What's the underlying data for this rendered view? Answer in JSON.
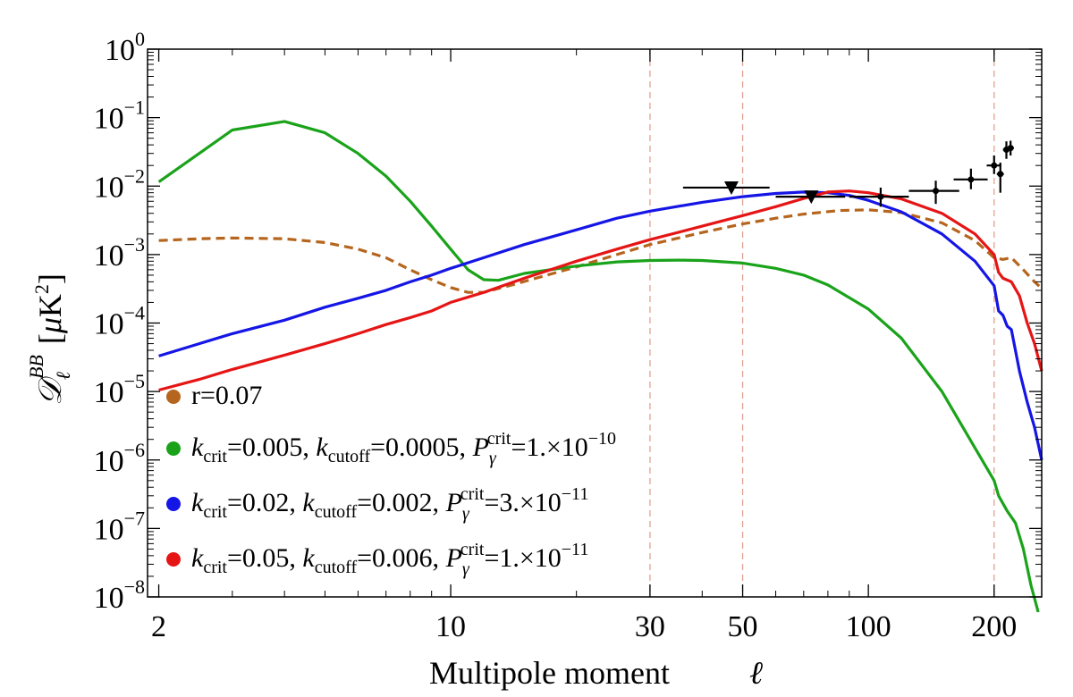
{
  "chart_data": {
    "type": "line",
    "title": "",
    "xlabel": "Multipole moment",
    "xlabel_symbol": "ℓ",
    "ylabel": "D_ℓ^BB [μK²]",
    "xscale": "log",
    "yscale": "log",
    "xlim": [
      1.88,
      260
    ],
    "ylim": [
      1e-08,
      1
    ],
    "x_ticks": [
      {
        "value": 2,
        "label": "2"
      },
      {
        "value": 10,
        "label": "10"
      },
      {
        "value": 30,
        "label": "30"
      },
      {
        "value": 50,
        "label": "50"
      },
      {
        "value": 100,
        "label": "100"
      },
      {
        "value": 200,
        "label": "200"
      }
    ],
    "y_ticks": [
      {
        "exp": 0,
        "base": "10",
        "sup": "0"
      },
      {
        "exp": -1,
        "base": "10",
        "sup": "−1"
      },
      {
        "exp": -2,
        "base": "10",
        "sup": "−2"
      },
      {
        "exp": -3,
        "base": "10",
        "sup": "−3"
      },
      {
        "exp": -4,
        "base": "10",
        "sup": "−4"
      },
      {
        "exp": -5,
        "base": "10",
        "sup": "−5"
      },
      {
        "exp": -6,
        "base": "10",
        "sup": "−6"
      },
      {
        "exp": -7,
        "base": "10",
        "sup": "−7"
      },
      {
        "exp": -8,
        "base": "10",
        "sup": "−8"
      }
    ],
    "vertical_guides": [
      30,
      50,
      200
    ],
    "legend_position": "lower-left",
    "series": [
      {
        "name": "r=0.07",
        "color": "#b5651d",
        "dash": "dashed",
        "points": [
          [
            2,
            0.0016
          ],
          [
            2.5,
            0.0017
          ],
          [
            3,
            0.00175
          ],
          [
            4,
            0.0017
          ],
          [
            5,
            0.0015
          ],
          [
            6,
            0.0012
          ],
          [
            7,
            0.0009
          ],
          [
            8,
            0.0006
          ],
          [
            9,
            0.00043
          ],
          [
            10,
            0.00033
          ],
          [
            11,
            0.00028
          ],
          [
            12,
            0.00028
          ],
          [
            14,
            0.00036
          ],
          [
            17,
            0.0005
          ],
          [
            20,
            0.00066
          ],
          [
            25,
            0.001
          ],
          [
            30,
            0.0014
          ],
          [
            40,
            0.0021
          ],
          [
            50,
            0.0028
          ],
          [
            60,
            0.0034
          ],
          [
            70,
            0.0039
          ],
          [
            85,
            0.0044
          ],
          [
            100,
            0.0045
          ],
          [
            120,
            0.0041
          ],
          [
            150,
            0.0029
          ],
          [
            180,
            0.0016
          ],
          [
            200,
            0.0009
          ],
          [
            210,
            0.00085
          ],
          [
            220,
            0.0009
          ],
          [
            235,
            0.0006
          ],
          [
            250,
            0.0004
          ],
          [
            260,
            0.00032
          ]
        ]
      },
      {
        "name": "k_crit=0.005, k_cutoff=0.0005, P_γ^crit=1.×10^−10",
        "color": "#1aa31a",
        "dash": "solid",
        "points": [
          [
            2,
            0.0115
          ],
          [
            2.5,
            0.03
          ],
          [
            3,
            0.066
          ],
          [
            4,
            0.088
          ],
          [
            5,
            0.06
          ],
          [
            6,
            0.03
          ],
          [
            7,
            0.014
          ],
          [
            8,
            0.006
          ],
          [
            9,
            0.0026
          ],
          [
            10,
            0.0012
          ],
          [
            11,
            0.0006
          ],
          [
            12,
            0.00043
          ],
          [
            13,
            0.00042
          ],
          [
            15,
            0.00053
          ],
          [
            20,
            0.00068
          ],
          [
            25,
            0.00078
          ],
          [
            30,
            0.00082
          ],
          [
            35,
            0.00083
          ],
          [
            40,
            0.00082
          ],
          [
            50,
            0.00075
          ],
          [
            60,
            0.00063
          ],
          [
            70,
            0.0005
          ],
          [
            80,
            0.00036
          ],
          [
            100,
            0.00016
          ],
          [
            120,
            6e-05
          ],
          [
            150,
            1e-05
          ],
          [
            180,
            1.5e-06
          ],
          [
            200,
            5e-07
          ],
          [
            205,
            3e-07
          ],
          [
            215,
            1.8e-07
          ],
          [
            225,
            1.2e-07
          ],
          [
            235,
            5e-08
          ],
          [
            245,
            1.5e-08
          ],
          [
            255,
            6e-09
          ]
        ]
      },
      {
        "name": "k_crit=0.02, k_cutoff=0.002, P_γ^crit=3.×10^−11",
        "color": "#1515e6",
        "dash": "solid",
        "points": [
          [
            2,
            3.3e-05
          ],
          [
            2.5,
            5e-05
          ],
          [
            3,
            7e-05
          ],
          [
            4,
            0.00011
          ],
          [
            5,
            0.00017
          ],
          [
            6,
            0.00023
          ],
          [
            7,
            0.0003
          ],
          [
            8,
            0.0004
          ],
          [
            9,
            0.0005
          ],
          [
            10,
            0.00063
          ],
          [
            12,
            0.0009
          ],
          [
            15,
            0.0014
          ],
          [
            20,
            0.0023
          ],
          [
            25,
            0.0034
          ],
          [
            30,
            0.0043
          ],
          [
            40,
            0.0058
          ],
          [
            50,
            0.007
          ],
          [
            60,
            0.0078
          ],
          [
            70,
            0.0082
          ],
          [
            80,
            0.008
          ],
          [
            90,
            0.0073
          ],
          [
            100,
            0.0062
          ],
          [
            120,
            0.0042
          ],
          [
            150,
            0.002
          ],
          [
            180,
            0.0008
          ],
          [
            200,
            0.00035
          ],
          [
            205,
            0.00015
          ],
          [
            210,
            0.00013
          ],
          [
            215,
            9e-05
          ],
          [
            220,
            8e-05
          ],
          [
            230,
            2e-05
          ],
          [
            240,
            7e-06
          ],
          [
            250,
            3e-06
          ],
          [
            260,
            1e-06
          ]
        ]
      },
      {
        "name": "k_crit=0.05, k_cutoff=0.006, P_γ^crit=1.×10^−11",
        "color": "#e61515",
        "dash": "solid",
        "points": [
          [
            2,
            1.05e-05
          ],
          [
            2.5,
            1.5e-05
          ],
          [
            3,
            2.1e-05
          ],
          [
            4,
            3.4e-05
          ],
          [
            5,
            5e-05
          ],
          [
            6,
            7e-05
          ],
          [
            7,
            9.5e-05
          ],
          [
            8,
            0.00012
          ],
          [
            9,
            0.00015
          ],
          [
            10,
            0.0002
          ],
          [
            12,
            0.00028
          ],
          [
            15,
            0.00045
          ],
          [
            20,
            0.0008
          ],
          [
            25,
            0.0012
          ],
          [
            30,
            0.00165
          ],
          [
            40,
            0.0026
          ],
          [
            50,
            0.0037
          ],
          [
            60,
            0.005
          ],
          [
            70,
            0.0066
          ],
          [
            80,
            0.0082
          ],
          [
            90,
            0.0085
          ],
          [
            100,
            0.008
          ],
          [
            120,
            0.0065
          ],
          [
            150,
            0.004
          ],
          [
            180,
            0.002
          ],
          [
            200,
            0.001
          ],
          [
            205,
            0.00055
          ],
          [
            210,
            0.00045
          ],
          [
            220,
            0.0004
          ],
          [
            230,
            0.00025
          ],
          [
            240,
            0.0001
          ],
          [
            250,
            5e-05
          ],
          [
            260,
            2e-05
          ]
        ]
      }
    ],
    "data_points": {
      "with_errors": [
        {
          "x": 107,
          "y": 0.007,
          "xlo": 90,
          "xhi": 125,
          "ylo": 0.005,
          "yhi": 0.0095
        },
        {
          "x": 145,
          "y": 0.0085,
          "xlo": 125,
          "xhi": 165,
          "ylo": 0.0055,
          "yhi": 0.012
        },
        {
          "x": 176,
          "y": 0.0125,
          "xlo": 160,
          "xhi": 193,
          "ylo": 0.009,
          "yhi": 0.018
        },
        {
          "x": 200,
          "y": 0.02,
          "xlo": 192,
          "xhi": 208,
          "ylo": 0.015,
          "yhi": 0.028
        },
        {
          "x": 207,
          "y": 0.015,
          "xlo": 203,
          "xhi": 211,
          "ylo": 0.008,
          "yhi": 0.022
        },
        {
          "x": 214,
          "y": 0.034,
          "xlo": 210,
          "xhi": 218,
          "ylo": 0.025,
          "yhi": 0.045
        },
        {
          "x": 219,
          "y": 0.036,
          "xlo": 215,
          "xhi": 223,
          "ylo": 0.028,
          "yhi": 0.046
        }
      ],
      "upper_limits": [
        {
          "x": 47,
          "y": 0.0095,
          "xlo": 36,
          "xhi": 58
        },
        {
          "x": 73,
          "y": 0.007,
          "xlo": 60,
          "xhi": 88
        }
      ]
    },
    "legend": [
      {
        "label_parts": [
          [
            "r=0.07",
            ""
          ]
        ],
        "color": "#b5651d"
      },
      {
        "label_parts": [
          [
            "k",
            "i"
          ],
          [
            "crit",
            "sub"
          ],
          [
            "=0.005, ",
            ""
          ],
          [
            "k",
            "i"
          ],
          [
            "cutoff",
            "sub"
          ],
          [
            "=0.0005, ",
            ""
          ],
          [
            "P",
            "i"
          ],
          [
            "γ",
            "sub-i"
          ],
          [
            "crit",
            "sup"
          ],
          [
            "=1.×10",
            ""
          ],
          [
            "−10",
            "sup"
          ]
        ],
        "color": "#1aa31a"
      },
      {
        "label_parts": [
          [
            "k",
            "i"
          ],
          [
            "crit",
            "sub"
          ],
          [
            "=0.02, ",
            ""
          ],
          [
            "k",
            "i"
          ],
          [
            "cutoff",
            "sub"
          ],
          [
            "=0.002, ",
            ""
          ],
          [
            "P",
            "i"
          ],
          [
            "γ",
            "sub-i"
          ],
          [
            "crit",
            "sup"
          ],
          [
            "=3.×10",
            ""
          ],
          [
            "−11",
            "sup"
          ]
        ],
        "color": "#1515e6"
      },
      {
        "label_parts": [
          [
            "k",
            "i"
          ],
          [
            "crit",
            "sub"
          ],
          [
            "=0.05, ",
            ""
          ],
          [
            "k",
            "i"
          ],
          [
            "cutoff",
            "sub"
          ],
          [
            "=0.006, ",
            ""
          ],
          [
            "P",
            "i"
          ],
          [
            "γ",
            "sub-i"
          ],
          [
            "crit",
            "sup"
          ],
          [
            "=1.×10",
            ""
          ],
          [
            "−11",
            "sup"
          ]
        ],
        "color": "#e61515"
      }
    ]
  }
}
